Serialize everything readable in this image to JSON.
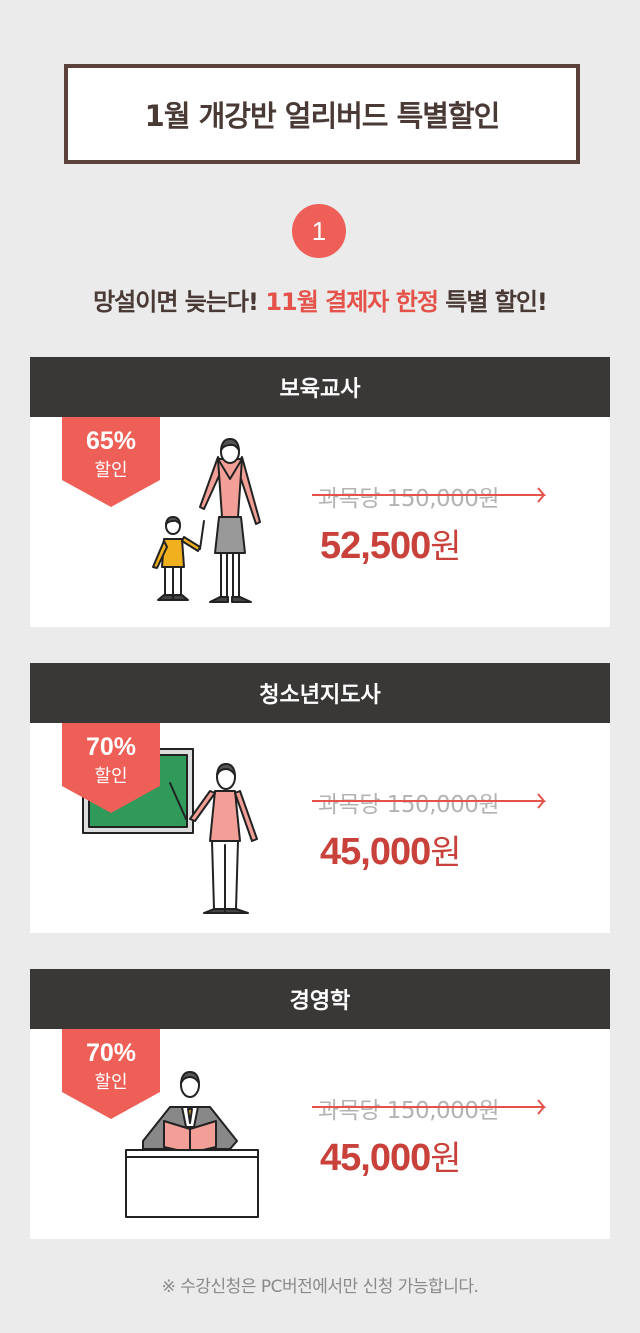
{
  "header": {
    "title": "1월 개강반 얼리버드 특별할인"
  },
  "step": {
    "number": "1"
  },
  "subtitle": {
    "part1": "망설이면 늦는다! ",
    "highlight": "11월 결제자 한정",
    "part2": " 특별 할인!"
  },
  "cards": [
    {
      "title": "보육교사",
      "discount": "65%",
      "discount_label": "할인",
      "original_price": "과목당 150,000원",
      "price_number": "52,500",
      "price_unit": "원",
      "illustration": "teacher-with-child-icon"
    },
    {
      "title": "청소년지도사",
      "discount": "70%",
      "discount_label": "할인",
      "original_price": "과목당 150,000원",
      "price_number": "45,000",
      "price_unit": "원",
      "illustration": "teacher-at-blackboard-icon"
    },
    {
      "title": "경영학",
      "discount": "70%",
      "discount_label": "할인",
      "original_price": "과목당 150,000원",
      "price_number": "45,000",
      "price_unit": "원",
      "illustration": "man-reading-at-desk-icon"
    }
  ],
  "footnote": "※ 수강신청은 PC버전에서만 신청 가능합니다.",
  "colors": {
    "accent": "#ee5f57",
    "price": "#c9413b",
    "header_bg": "#3a3837",
    "title_border": "#5a413a",
    "background": "#ebebeb"
  }
}
